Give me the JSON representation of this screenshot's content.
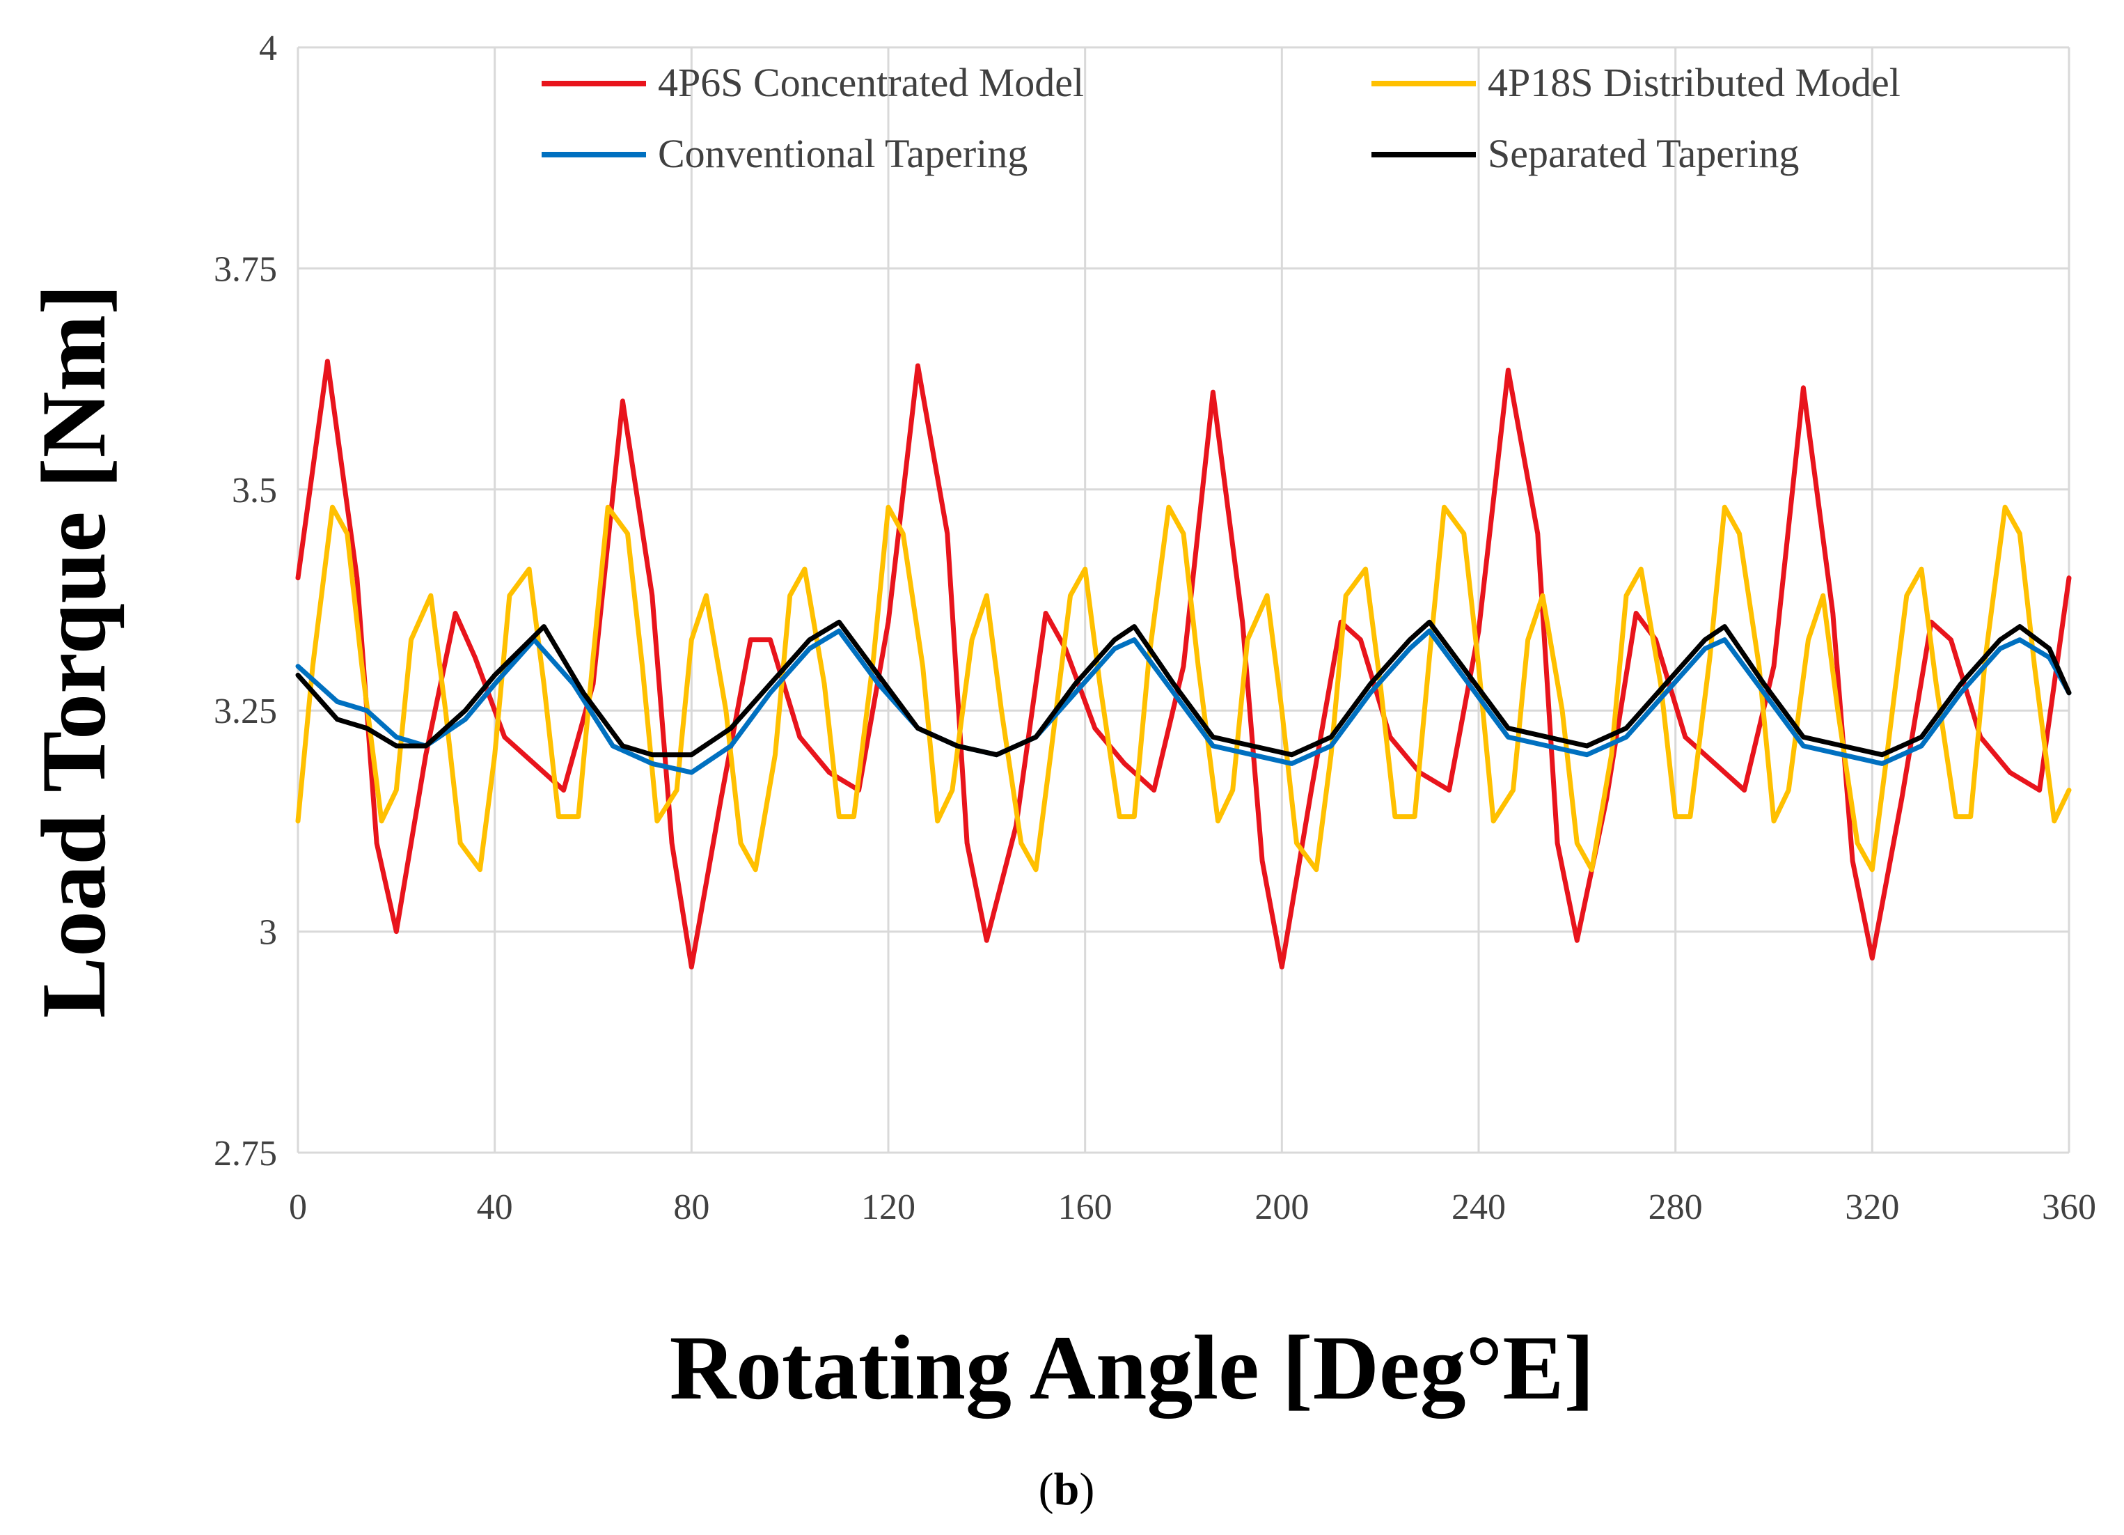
{
  "chart_data": {
    "type": "line",
    "title": "",
    "xlabel": "Rotating Angle [Deg°E]",
    "ylabel": "Load Torque [Nm]",
    "xlim": [
      0,
      360
    ],
    "ylim": [
      2.75,
      4
    ],
    "xticks": [
      0,
      40,
      80,
      120,
      160,
      200,
      240,
      280,
      320,
      360
    ],
    "xtick_labels": [
      "0",
      "40",
      "80",
      "120",
      "160",
      "200",
      "240",
      "280",
      "320",
      "360"
    ],
    "yticks": [
      2.75,
      3,
      3.25,
      3.5,
      3.75,
      4
    ],
    "ytick_labels": [
      "2.75",
      "3",
      "3.25",
      "3.5",
      "3.75",
      "4"
    ],
    "grid": true,
    "legend_position": "top",
    "caption": {
      "open": "(",
      "letter": "b",
      "close": ")"
    },
    "series": [
      {
        "name": "4P6S Concentrated Model",
        "color": "#e8141c",
        "x": [
          0,
          6,
          12,
          16,
          20,
          26,
          32,
          36,
          42,
          48,
          54,
          60,
          66,
          72,
          76,
          80,
          86,
          92,
          96,
          102,
          108,
          114,
          120,
          126,
          132,
          136,
          140,
          146,
          152,
          156,
          162,
          168,
          174,
          180,
          186,
          192,
          196,
          200,
          206,
          212,
          216,
          222,
          228,
          234,
          240,
          246,
          252,
          256,
          260,
          266,
          272,
          276,
          282,
          288,
          294,
          300,
          306,
          312,
          316,
          320,
          326,
          332,
          336,
          342,
          348,
          354,
          360
        ],
        "values": [
          3.4,
          3.645,
          3.4,
          3.1,
          3.0,
          3.2,
          3.36,
          3.31,
          3.22,
          3.19,
          3.16,
          3.28,
          3.6,
          3.38,
          3.1,
          2.96,
          3.15,
          3.33,
          3.33,
          3.22,
          3.18,
          3.16,
          3.35,
          3.64,
          3.45,
          3.1,
          2.99,
          3.12,
          3.36,
          3.32,
          3.23,
          3.19,
          3.16,
          3.3,
          3.61,
          3.35,
          3.08,
          2.96,
          3.16,
          3.35,
          3.33,
          3.22,
          3.18,
          3.16,
          3.34,
          3.635,
          3.45,
          3.1,
          2.99,
          3.15,
          3.36,
          3.33,
          3.22,
          3.19,
          3.16,
          3.3,
          3.615,
          3.36,
          3.08,
          2.97,
          3.15,
          3.35,
          3.33,
          3.22,
          3.18,
          3.16,
          3.4
        ]
      },
      {
        "name": "4P18S Distributed Model",
        "color": "#ffc000",
        "x": [
          0,
          3,
          7,
          10,
          13,
          17,
          20,
          23,
          27,
          30,
          33,
          37,
          40,
          43,
          47,
          50,
          53,
          57,
          60,
          63,
          67,
          70,
          73,
          77,
          80,
          83,
          87,
          90,
          93,
          97,
          100,
          103,
          107,
          110,
          113,
          117,
          120,
          123,
          127,
          130,
          133,
          137,
          140,
          143,
          147,
          150,
          153,
          157,
          160,
          163,
          167,
          170,
          173,
          177,
          180,
          183,
          187,
          190,
          193,
          197,
          200,
          203,
          207,
          210,
          213,
          217,
          220,
          223,
          227,
          230,
          233,
          237,
          240,
          243,
          247,
          250,
          253,
          257,
          260,
          263,
          267,
          270,
          273,
          277,
          280,
          283,
          287,
          290,
          293,
          297,
          300,
          303,
          307,
          310,
          313,
          317,
          320,
          323,
          327,
          330,
          333,
          337,
          340,
          343,
          347,
          350,
          353,
          357,
          360
        ],
        "values": [
          3.125,
          3.3,
          3.48,
          3.45,
          3.3,
          3.125,
          3.16,
          3.33,
          3.38,
          3.25,
          3.1,
          3.07,
          3.2,
          3.38,
          3.41,
          3.28,
          3.13,
          3.13,
          3.31,
          3.48,
          3.45,
          3.3,
          3.125,
          3.16,
          3.33,
          3.38,
          3.25,
          3.1,
          3.07,
          3.2,
          3.38,
          3.41,
          3.28,
          3.13,
          3.13,
          3.31,
          3.48,
          3.45,
          3.3,
          3.125,
          3.16,
          3.33,
          3.38,
          3.25,
          3.1,
          3.07,
          3.2,
          3.38,
          3.41,
          3.28,
          3.13,
          3.13,
          3.31,
          3.48,
          3.45,
          3.3,
          3.125,
          3.16,
          3.33,
          3.38,
          3.25,
          3.1,
          3.07,
          3.2,
          3.38,
          3.41,
          3.28,
          3.13,
          3.13,
          3.31,
          3.48,
          3.45,
          3.3,
          3.125,
          3.16,
          3.33,
          3.38,
          3.25,
          3.1,
          3.07,
          3.2,
          3.38,
          3.41,
          3.28,
          3.13,
          3.13,
          3.31,
          3.48,
          3.45,
          3.3,
          3.125,
          3.16,
          3.33,
          3.38,
          3.25,
          3.1,
          3.07,
          3.2,
          3.38,
          3.41,
          3.28,
          3.13,
          3.13,
          3.31,
          3.48,
          3.45,
          3.3,
          3.125,
          3.16
        ]
      },
      {
        "name": "Conventional Tapering",
        "color": "#0070c0",
        "x": [
          0,
          8,
          14,
          20,
          26,
          34,
          40,
          48,
          56,
          64,
          72,
          80,
          88,
          96,
          104,
          110,
          118,
          126,
          134,
          142,
          150,
          158,
          166,
          170,
          178,
          186,
          194,
          202,
          210,
          218,
          226,
          230,
          238,
          246,
          254,
          262,
          270,
          278,
          286,
          290,
          298,
          306,
          314,
          322,
          330,
          338,
          346,
          350,
          356,
          360
        ],
        "values": [
          3.3,
          3.26,
          3.25,
          3.22,
          3.21,
          3.24,
          3.28,
          3.33,
          3.28,
          3.21,
          3.19,
          3.18,
          3.21,
          3.27,
          3.32,
          3.34,
          3.28,
          3.23,
          3.21,
          3.2,
          3.22,
          3.27,
          3.32,
          3.33,
          3.27,
          3.21,
          3.2,
          3.19,
          3.21,
          3.27,
          3.32,
          3.34,
          3.28,
          3.22,
          3.21,
          3.2,
          3.22,
          3.27,
          3.32,
          3.33,
          3.27,
          3.21,
          3.2,
          3.19,
          3.21,
          3.27,
          3.32,
          3.33,
          3.31,
          3.27
        ]
      },
      {
        "name": "Separated Tapering",
        "color": "#000000",
        "x": [
          0,
          8,
          14,
          20,
          26,
          34,
          40,
          50,
          58,
          66,
          72,
          80,
          88,
          96,
          104,
          110,
          118,
          126,
          134,
          142,
          150,
          158,
          166,
          170,
          178,
          186,
          194,
          202,
          210,
          218,
          226,
          230,
          238,
          246,
          254,
          262,
          270,
          278,
          286,
          290,
          298,
          306,
          314,
          322,
          330,
          338,
          346,
          350,
          356,
          360
        ],
        "values": [
          3.29,
          3.24,
          3.23,
          3.21,
          3.21,
          3.25,
          3.29,
          3.345,
          3.27,
          3.21,
          3.2,
          3.2,
          3.23,
          3.28,
          3.33,
          3.35,
          3.29,
          3.23,
          3.21,
          3.2,
          3.22,
          3.28,
          3.33,
          3.345,
          3.28,
          3.22,
          3.21,
          3.2,
          3.22,
          3.28,
          3.33,
          3.35,
          3.29,
          3.23,
          3.22,
          3.21,
          3.23,
          3.28,
          3.33,
          3.345,
          3.28,
          3.22,
          3.21,
          3.2,
          3.22,
          3.28,
          3.33,
          3.345,
          3.32,
          3.27
        ]
      }
    ]
  }
}
